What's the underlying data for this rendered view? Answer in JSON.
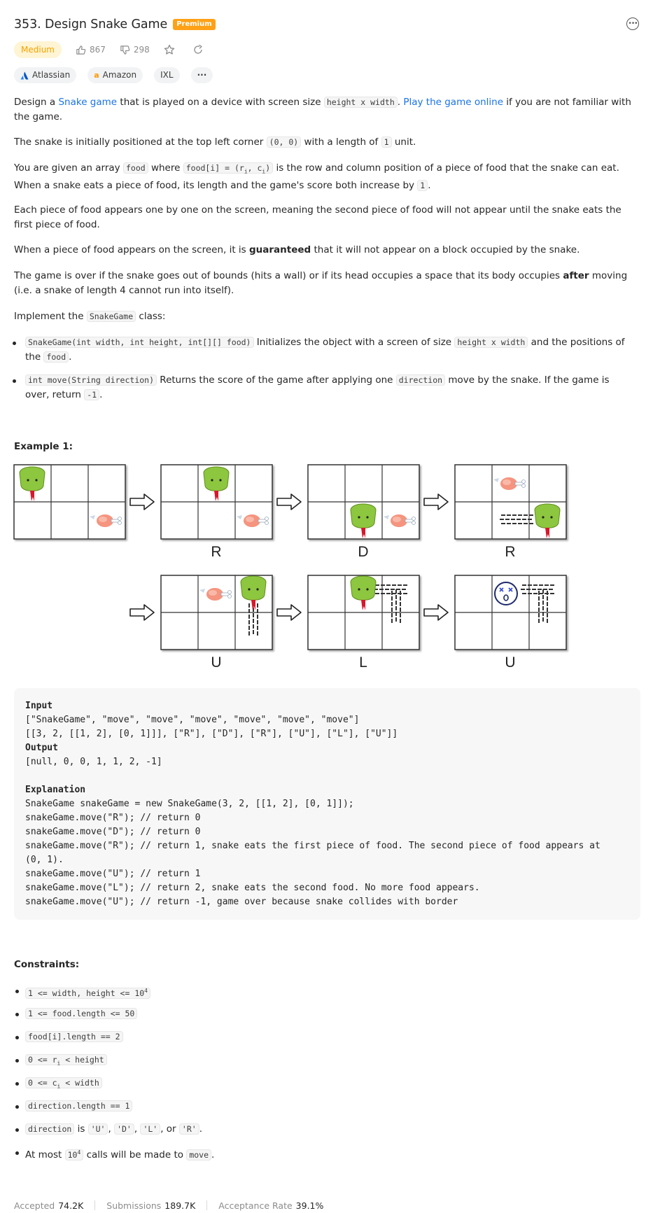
{
  "problem": {
    "title": "353. Design Snake Game",
    "badge": "Premium",
    "difficulty": "Medium",
    "likes": "867",
    "dislikes": "298",
    "companies": [
      "Atlassian",
      "Amazon",
      "IXL"
    ],
    "more_tags": "···"
  },
  "desc": {
    "p1_a": "Design a ",
    "p1_link": "Snake game",
    "p1_b": " that is played on a device with screen size ",
    "p1_code": "height x width",
    "p1_c": ". ",
    "p1_link2": "Play the game online",
    "p1_d": " if you are not familiar with the game.",
    "p2_a": "The snake is initially positioned at the top left corner ",
    "p2_code": "(0, 0)",
    "p2_b": " with a length of ",
    "p2_code2": "1",
    "p2_c": " unit.",
    "p3_a": "You are given an array ",
    "p3_code": "food",
    "p3_b": " where ",
    "p3_code2": "food[i] = (ri, ci)",
    "p3_c": " is the row and column position of a piece of food that the snake can eat. When a snake eats a piece of food, its length and the game's score both increase by ",
    "p3_code3": "1",
    "p3_d": ".",
    "p4": "Each piece of food appears one by one on the screen, meaning the second piece of food will not appear until the snake eats the first piece of food.",
    "p5_a": "When a piece of food appears on the screen, it is ",
    "p5_b": "guaranteed",
    "p5_c": " that it will not appear on a block occupied by the snake.",
    "p6_a": "The game is over if the snake goes out of bounds (hits a wall) or if its head occupies a space that its body occupies ",
    "p6_b": "after",
    "p6_c": " moving (i.e. a snake of length 4 cannot run into itself).",
    "p7_a": "Implement the ",
    "p7_code": "SnakeGame",
    "p7_b": " class:",
    "b1_code": "SnakeGame(int width, int height, int[][] food)",
    "b1_a": " Initializes the object with a screen of size ",
    "b1_code2": "height x width",
    "b1_b": " and the positions of the ",
    "b1_code3": "food",
    "b1_c": ".",
    "b2_code": "int move(String direction)",
    "b2_a": " Returns the score of the game after applying one ",
    "b2_code2": "direction",
    "b2_b": " move by the snake. If the game is over, return ",
    "b2_code3": "-1",
    "b2_c": "."
  },
  "example": {
    "heading": "Example 1:",
    "labels": [
      "R",
      "D",
      "R",
      "U",
      "L",
      "U"
    ],
    "input_label": "Input",
    "input_line1": "[\"SnakeGame\", \"move\", \"move\", \"move\", \"move\", \"move\", \"move\"]",
    "input_line2": "[[3, 2, [[1, 2], [0, 1]]], [\"R\"], [\"D\"], [\"R\"], [\"U\"], [\"L\"], [\"U\"]]",
    "output_label": "Output",
    "output_line": "[null, 0, 0, 1, 1, 2, -1]",
    "explanation_label": "Explanation",
    "exp_lines": [
      "SnakeGame snakeGame = new SnakeGame(3, 2, [[1, 2], [0, 1]]);",
      "snakeGame.move(\"R\"); // return 0",
      "snakeGame.move(\"D\"); // return 0",
      "snakeGame.move(\"R\"); // return 1, snake eats the first piece of food. The second piece of food appears at",
      "(0, 1).",
      "snakeGame.move(\"U\"); // return 1",
      "snakeGame.move(\"L\"); // return 2, snake eats the second food. No more food appears.",
      "snakeGame.move(\"U\"); // return -1, game over because snake collides with border"
    ]
  },
  "constraints": {
    "heading": "Constraints:",
    "c1": "1 <= width, height <= 10",
    "c1_sup": "4",
    "c2": "1 <= food.length <= 50",
    "c3": "food[i].length == 2",
    "c4_a": "0 <= r",
    "c4_sub": "i",
    "c4_b": " < height",
    "c5_a": "0 <= c",
    "c5_sub": "i",
    "c5_b": " < width",
    "c6": "direction.length == 1",
    "c7_code": "direction",
    "c7_a": " is ",
    "c7_u": "'U'",
    "c7_d": "'D'",
    "c7_l": "'L'",
    "c7_or": ", or ",
    "c7_r": "'R'",
    "c7_end": ".",
    "c8_a": "At most ",
    "c8_code": "10",
    "c8_sup": "4",
    "c8_b": " calls will be made to ",
    "c8_code2": "move",
    "c8_c": "."
  },
  "stats": {
    "accepted_label": "Accepted",
    "accepted": "74.2K",
    "submissions_label": "Submissions",
    "submissions": "189.7K",
    "rate_label": "Acceptance Rate",
    "rate": "39.1%"
  }
}
